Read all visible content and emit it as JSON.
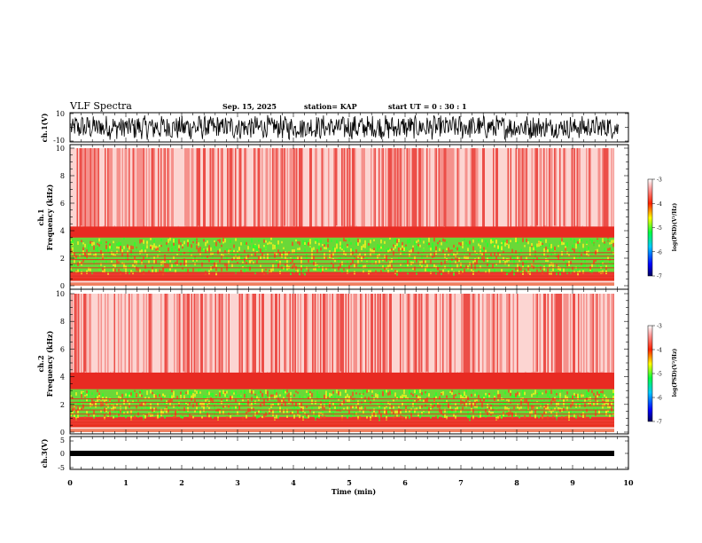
{
  "header": {
    "title": "VLF Spectra",
    "date": "Sep. 15, 2025",
    "station": "station= KAP",
    "start": "start  UT =   0 : 30 : 1"
  },
  "chart_data": [
    {
      "type": "line",
      "name": "ch1-waveform",
      "ylabel": "ch.1(V)",
      "ylim": [
        -10,
        10
      ],
      "ytick_labels": [
        "10",
        "-10"
      ],
      "xlim": [
        0,
        10
      ]
    },
    {
      "type": "heatmap",
      "name": "ch1-spectrogram",
      "ylabel": "ch.1\nFrequency (kHz)",
      "ylabel_line1": "ch.1",
      "ylabel_line2": "Frequency (kHz)",
      "ylim": [
        0,
        10
      ],
      "yticks": [
        0,
        2,
        4,
        6,
        8,
        10
      ],
      "xlim": [
        0,
        9.83
      ],
      "colorbar": {
        "label": "log(PSD)(V²/Hz)",
        "range": [
          -7,
          -3
        ],
        "tick_labels": [
          "-3",
          "-4",
          "-5",
          "-6",
          "-7"
        ]
      }
    },
    {
      "type": "heatmap",
      "name": "ch2-spectrogram",
      "ylabel": "ch.2\nFrequency (kHz)",
      "ylabel_line1": "ch.2",
      "ylabel_line2": "Frequency (kHz)",
      "ylim": [
        0,
        10
      ],
      "yticks": [
        0,
        2,
        4,
        6,
        8,
        10
      ],
      "xlim": [
        0,
        9.83
      ],
      "colorbar": {
        "label": "log(PSD)(V²/Hz)",
        "range": [
          -7,
          -3
        ],
        "tick_labels": [
          "-3",
          "-4",
          "-5",
          "-6",
          "-7"
        ]
      }
    },
    {
      "type": "line",
      "name": "ch3-waveform",
      "ylabel": "ch.3(V)",
      "ylim": [
        -5,
        5
      ],
      "ytick_labels": [
        "5",
        "0",
        "-5"
      ],
      "xlim": [
        0,
        10
      ],
      "xlabel": "Time (min)",
      "xtick_labels": [
        "0",
        "1",
        "2",
        "3",
        "4",
        "5",
        "6",
        "7",
        "8",
        "9",
        "10"
      ]
    }
  ],
  "colors": {
    "background": "#ffffff",
    "axis": "#000000",
    "waveform": "#000000"
  }
}
